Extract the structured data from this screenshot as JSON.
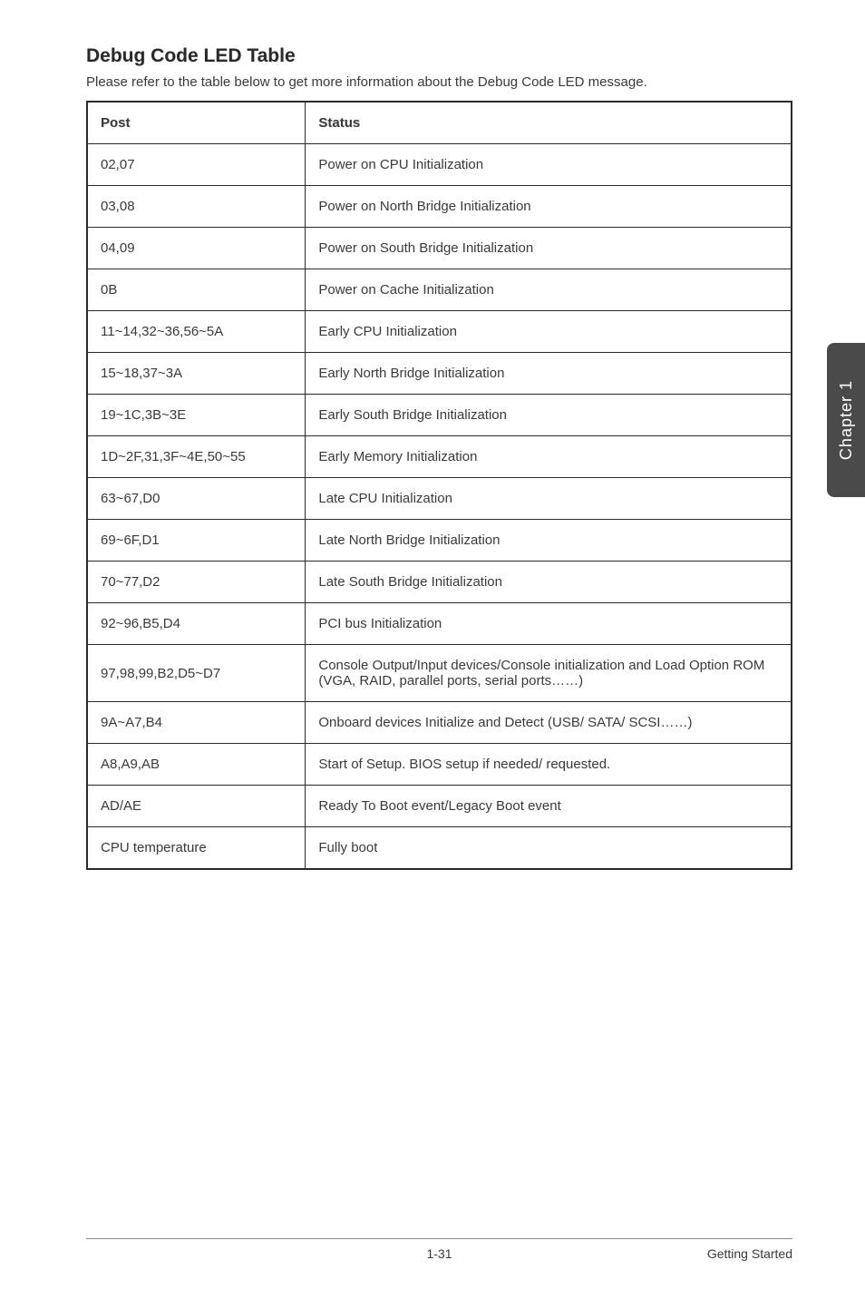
{
  "heading": "Debug Code LED Table",
  "intro": "Please refer to the table below to get more information about the Debug Code LED message.",
  "table": {
    "headers": {
      "post": "Post",
      "status": "Status"
    },
    "rows": [
      {
        "post": "02,07",
        "status": "Power on CPU Initialization"
      },
      {
        "post": "03,08",
        "status": "Power on North Bridge Initialization"
      },
      {
        "post": "04,09",
        "status": "Power on South Bridge Initialization"
      },
      {
        "post": "0B",
        "status": "Power on Cache Initialization"
      },
      {
        "post": "11~14,32~36,56~5A",
        "status": "Early CPU Initialization"
      },
      {
        "post": "15~18,37~3A",
        "status": "Early North Bridge Initialization"
      },
      {
        "post": "19~1C,3B~3E",
        "status": "Early South Bridge Initialization"
      },
      {
        "post": "1D~2F,31,3F~4E,50~55",
        "status": "Early Memory Initialization"
      },
      {
        "post": "63~67,D0",
        "status": "Late CPU Initialization"
      },
      {
        "post": "69~6F,D1",
        "status": "Late North Bridge Initialization"
      },
      {
        "post": "70~77,D2",
        "status": "Late South Bridge Initialization"
      },
      {
        "post": "92~96,B5,D4",
        "status": "PCI bus Initialization"
      },
      {
        "post": "97,98,99,B2,D5~D7",
        "status": "Console Output/Input devices/Console initialization and Load Option ROM (VGA, RAID, parallel ports, serial ports……)"
      },
      {
        "post": "9A~A7,B4",
        "status": "Onboard devices Initialize and Detect (USB/ SATA/ SCSI……)"
      },
      {
        "post": "A8,A9,AB",
        "status": "Start of Setup. BIOS setup if needed/ requested."
      },
      {
        "post": "AD/AE",
        "status": "Ready To Boot event/Legacy Boot event"
      },
      {
        "post": "CPU temperature",
        "status": "Fully boot"
      }
    ]
  },
  "side_tab": "Chapter 1",
  "footer": {
    "page": "1-31",
    "section": "Getting Started"
  },
  "style": {
    "page_bg": "#ffffff",
    "text_color": "#3a3a3a",
    "heading_fontsize": 21,
    "body_fontsize": 15,
    "border_color": "#2a2a2a",
    "tab_bg": "#4a4a4a",
    "tab_text_color": "#ffffff",
    "footer_border": "#8a8a8a"
  }
}
